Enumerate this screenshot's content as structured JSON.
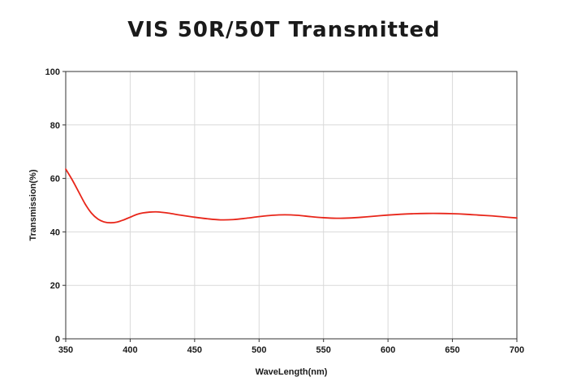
{
  "chart_data": {
    "type": "line",
    "title": "VIS 50R/50T Transmitted",
    "xlabel": "WaveLength(nm)",
    "ylabel": "Transmission(%)",
    "xlim": [
      350,
      700
    ],
    "ylim": [
      0,
      100
    ],
    "xticks": [
      "350",
      "400",
      "450",
      "500",
      "550",
      "600",
      "650",
      "700"
    ],
    "yticks": [
      "0",
      "20",
      "40",
      "60",
      "80",
      "100"
    ],
    "grid": true,
    "colors": {
      "series": "#e8261a",
      "grid": "#d9d9d9",
      "axis": "#333333"
    },
    "series": [
      {
        "x": [
          350,
          355,
          360,
          365,
          370,
          375,
          380,
          385,
          390,
          395,
          400,
          405,
          410,
          415,
          420,
          425,
          430,
          440,
          450,
          460,
          470,
          480,
          490,
          500,
          510,
          520,
          530,
          540,
          550,
          560,
          570,
          580,
          590,
          600,
          610,
          620,
          630,
          640,
          650,
          660,
          670,
          680,
          690,
          700
        ],
        "y": [
          63.5,
          59.5,
          55.0,
          50.5,
          47.0,
          44.8,
          43.7,
          43.4,
          43.7,
          44.5,
          45.5,
          46.5,
          47.1,
          47.4,
          47.5,
          47.3,
          47.0,
          46.2,
          45.5,
          44.9,
          44.5,
          44.6,
          45.1,
          45.7,
          46.2,
          46.4,
          46.2,
          45.7,
          45.3,
          45.1,
          45.2,
          45.5,
          45.9,
          46.3,
          46.6,
          46.8,
          46.9,
          46.9,
          46.8,
          46.6,
          46.3,
          46.0,
          45.6,
          45.2
        ]
      }
    ]
  }
}
